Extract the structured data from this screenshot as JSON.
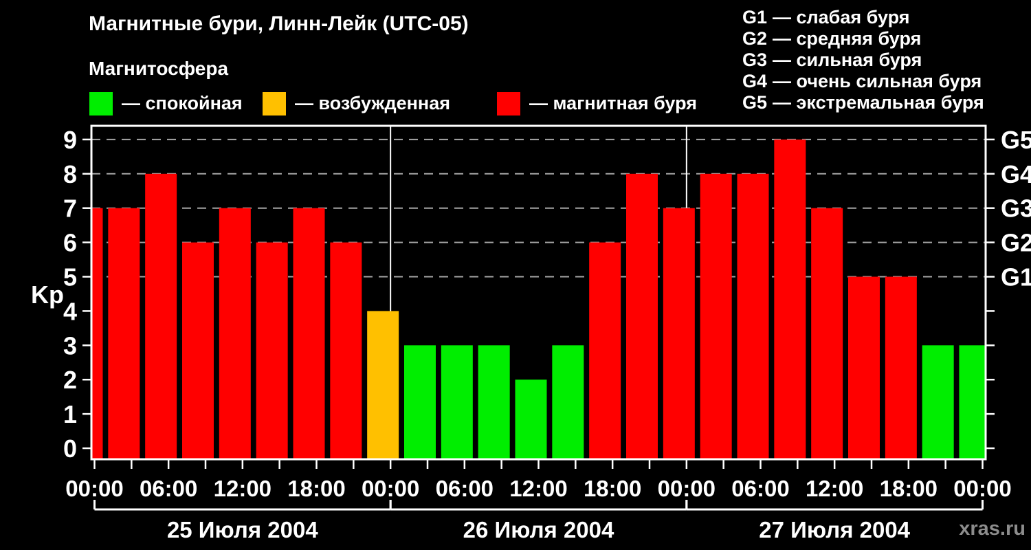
{
  "watermark": "xras.ru",
  "legend": {
    "items": [
      {
        "state": "calm",
        "label": "— спокойная"
      },
      {
        "state": "excited",
        "label": "— возбужденная"
      },
      {
        "state": "storm",
        "label": "— магнитная буря"
      }
    ]
  },
  "storm_scale": {
    "items": [
      {
        "level": "G1",
        "label": "— слабая буря"
      },
      {
        "level": "G2",
        "label": "— средняя буря"
      },
      {
        "level": "G3",
        "label": "— сильная буря"
      },
      {
        "level": "G4",
        "label": "— очень сильная буря"
      },
      {
        "level": "G5",
        "label": "— экстремальная буря"
      }
    ]
  },
  "chart_data": {
    "type": "bar",
    "title": "Магнитные бури, Линн-Лейк (UTC-05)",
    "subtitle": "Магнитосфера",
    "ylabel": "Kp",
    "ylim": [
      0,
      9
    ],
    "y_ticks": [
      0,
      1,
      2,
      3,
      4,
      5,
      6,
      7,
      8,
      9
    ],
    "grid_levels": [
      5,
      6,
      7,
      8,
      9
    ],
    "right_axis": [
      {
        "kp": 5,
        "label": "G1"
      },
      {
        "kp": 6,
        "label": "G2"
      },
      {
        "kp": 7,
        "label": "G3"
      },
      {
        "kp": 8,
        "label": "G4"
      },
      {
        "kp": 9,
        "label": "G5"
      }
    ],
    "x_hours_total": 72,
    "x_tick_every_hours": 3,
    "x_label_every_hours": 6,
    "time_labels_cycle": [
      "00:00",
      "06:00",
      "12:00",
      "18:00"
    ],
    "state_colors": {
      "calm": "#00ee00",
      "excited": "#ffc000",
      "storm": "#ff0000"
    },
    "days": [
      {
        "date": "25 Июля 2004",
        "start_hour": 0
      },
      {
        "date": "26 Июля 2004",
        "start_hour": 24
      },
      {
        "date": "27 Июля 2004",
        "start_hour": 48
      }
    ],
    "bars": [
      {
        "hour": 0,
        "kp": 7,
        "state": "storm"
      },
      {
        "hour": 3,
        "kp": 7,
        "state": "storm"
      },
      {
        "hour": 6,
        "kp": 8,
        "state": "storm"
      },
      {
        "hour": 9,
        "kp": 6,
        "state": "storm"
      },
      {
        "hour": 12,
        "kp": 7,
        "state": "storm"
      },
      {
        "hour": 15,
        "kp": 6,
        "state": "storm"
      },
      {
        "hour": 18,
        "kp": 7,
        "state": "storm"
      },
      {
        "hour": 21,
        "kp": 6,
        "state": "storm"
      },
      {
        "hour": 24,
        "kp": 4,
        "state": "excited"
      },
      {
        "hour": 27,
        "kp": 3,
        "state": "calm"
      },
      {
        "hour": 30,
        "kp": 3,
        "state": "calm"
      },
      {
        "hour": 33,
        "kp": 3,
        "state": "calm"
      },
      {
        "hour": 36,
        "kp": 2,
        "state": "calm"
      },
      {
        "hour": 39,
        "kp": 3,
        "state": "calm"
      },
      {
        "hour": 42,
        "kp": 6,
        "state": "storm"
      },
      {
        "hour": 45,
        "kp": 8,
        "state": "storm"
      },
      {
        "hour": 48,
        "kp": 7,
        "state": "storm"
      },
      {
        "hour": 51,
        "kp": 8,
        "state": "storm"
      },
      {
        "hour": 54,
        "kp": 8,
        "state": "storm"
      },
      {
        "hour": 57,
        "kp": 9,
        "state": "storm"
      },
      {
        "hour": 60,
        "kp": 7,
        "state": "storm"
      },
      {
        "hour": 63,
        "kp": 5,
        "state": "storm"
      },
      {
        "hour": 66,
        "kp": 5,
        "state": "storm"
      },
      {
        "hour": 69,
        "kp": 3,
        "state": "calm"
      },
      {
        "hour": 72,
        "kp": 3,
        "state": "calm"
      }
    ]
  }
}
